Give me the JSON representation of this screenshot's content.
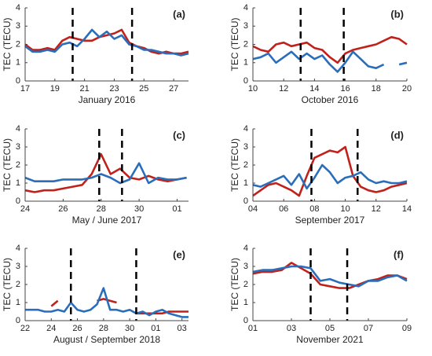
{
  "chart_data": [
    {
      "type": "line",
      "label": "(a)",
      "xlabel": "January 2016",
      "ylabel": "TEC (TECU)",
      "xlim": [
        17,
        28
      ],
      "xticks": [
        17,
        19,
        21,
        23,
        25,
        27
      ],
      "ylim": [
        0,
        4
      ],
      "yticks": [
        0,
        1,
        2,
        3,
        4
      ],
      "events": [
        20.2,
        24.2
      ],
      "x": [
        17,
        17.5,
        18,
        18.5,
        19,
        19.5,
        20,
        20.5,
        21,
        21.5,
        22,
        22.5,
        23,
        23.5,
        24,
        24.5,
        25,
        25.5,
        26,
        26.5,
        27,
        27.5,
        28
      ],
      "series": [
        {
          "color": "#c0211b",
          "values": [
            2.0,
            1.7,
            1.7,
            1.8,
            1.7,
            2.2,
            2.4,
            2.3,
            2.2,
            2.2,
            2.4,
            2.5,
            2.6,
            2.8,
            2.1,
            1.9,
            1.8,
            1.6,
            1.5,
            1.6,
            1.5,
            1.5,
            1.6
          ]
        },
        {
          "color": "#2a6ebb",
          "values": [
            1.9,
            1.6,
            1.6,
            1.7,
            1.6,
            2.0,
            2.1,
            1.9,
            2.3,
            2.8,
            2.4,
            2.7,
            2.3,
            2.5,
            2.0,
            1.9,
            1.7,
            1.7,
            1.6,
            1.5,
            1.5,
            1.4,
            1.5
          ]
        }
      ]
    },
    {
      "type": "line",
      "label": "(b)",
      "xlabel": "October 2016",
      "ylabel": "TEC (TECU)",
      "xlim": [
        10,
        20
      ],
      "xticks": [
        10,
        12,
        14,
        16,
        18,
        20
      ],
      "ylim": [
        0,
        4
      ],
      "yticks": [
        0,
        1,
        2,
        3,
        4
      ],
      "events": [
        13.1,
        15.9
      ],
      "x": [
        10,
        10.5,
        11,
        11.5,
        12,
        12.5,
        13,
        13.5,
        14,
        14.5,
        15,
        15.5,
        16,
        16.5,
        17,
        17.5,
        18,
        18.5,
        19,
        19.5,
        20
      ],
      "series": [
        {
          "color": "#c0211b",
          "values": [
            1.9,
            1.7,
            1.6,
            2.0,
            2.1,
            1.9,
            2.0,
            2.1,
            1.8,
            1.7,
            1.3,
            1.0,
            1.5,
            1.7,
            1.8,
            1.9,
            2.0,
            2.2,
            2.4,
            2.3,
            2.0
          ]
        },
        {
          "color": "#2a6ebb",
          "values": [
            1.2,
            1.3,
            1.5,
            1.0,
            1.3,
            1.6,
            1.2,
            1.5,
            1.2,
            1.4,
            0.9,
            0.5,
            1.0,
            1.6,
            1.2,
            0.8,
            0.7,
            0.9,
            null,
            0.9,
            1.0
          ]
        }
      ]
    },
    {
      "type": "line",
      "label": "(c)",
      "xlabel": "May / June 2017",
      "ylabel": "TEC (TECU)",
      "xlim": [
        24,
        32.6
      ],
      "xticks": [
        24,
        26,
        28,
        30,
        {
          "value": 32,
          "label": "01"
        }
      ],
      "ylim": [
        0,
        4
      ],
      "yticks": [
        0,
        1,
        2,
        3,
        4
      ],
      "events": [
        27.9,
        29.1
      ],
      "x": [
        24,
        24.5,
        25,
        25.5,
        26,
        26.5,
        27,
        27.5,
        28,
        28.5,
        29,
        29.5,
        30,
        30.5,
        31,
        31.5,
        32,
        32.5
      ],
      "series": [
        {
          "color": "#c0211b",
          "values": [
            0.6,
            0.5,
            0.6,
            0.6,
            0.7,
            0.8,
            0.9,
            1.5,
            2.6,
            1.5,
            1.8,
            1.3,
            1.2,
            1.4,
            1.2,
            1.1,
            1.2,
            1.3
          ]
        },
        {
          "color": "#2a6ebb",
          "values": [
            1.3,
            1.1,
            1.1,
            1.1,
            1.2,
            1.2,
            1.2,
            1.3,
            1.5,
            1.3,
            1.0,
            1.2,
            2.1,
            1.0,
            1.3,
            1.2,
            1.2,
            1.3
          ]
        }
      ]
    },
    {
      "type": "line",
      "label": "(d)",
      "xlabel": "September 2017",
      "ylabel": "TEC (TECU)",
      "xlim": [
        4,
        14
      ],
      "xticks": [
        {
          "value": 4,
          "label": "04"
        },
        {
          "value": 6,
          "label": "06"
        },
        {
          "value": 8,
          "label": "08"
        },
        10,
        12,
        14
      ],
      "ylim": [
        0,
        4
      ],
      "yticks": [
        0,
        1,
        2,
        3,
        4
      ],
      "events": [
        7.8,
        10.8
      ],
      "x": [
        4,
        4.5,
        5,
        5.5,
        6,
        6.5,
        7,
        7.5,
        8,
        8.5,
        9,
        9.5,
        10,
        10.5,
        11,
        11.5,
        12,
        12.5,
        13,
        13.5,
        14
      ],
      "series": [
        {
          "color": "#c0211b",
          "values": [
            0.3,
            0.6,
            0.9,
            1.0,
            0.8,
            0.6,
            0.3,
            1.4,
            2.4,
            2.6,
            2.8,
            2.7,
            3.0,
            1.4,
            0.8,
            0.6,
            0.5,
            0.6,
            0.8,
            0.9,
            1.0
          ]
        },
        {
          "color": "#2a6ebb",
          "values": [
            0.9,
            0.8,
            1.0,
            1.2,
            1.4,
            0.9,
            1.5,
            0.7,
            1.3,
            2.0,
            1.6,
            1.0,
            1.3,
            1.4,
            1.6,
            1.2,
            1.0,
            1.1,
            1.0,
            1.0,
            1.1
          ]
        }
      ]
    },
    {
      "type": "line",
      "label": "(e)",
      "xlabel": "August / September 2018",
      "ylabel": "TEC (TECU)",
      "xlim": [
        22,
        34.5
      ],
      "xticks": [
        22,
        24,
        26,
        28,
        30,
        {
          "value": 32,
          "label": "01"
        },
        {
          "value": 34,
          "label": "03"
        }
      ],
      "ylim": [
        0,
        4
      ],
      "yticks": [
        0,
        1,
        2,
        3,
        4
      ],
      "events": [
        25.5,
        30.5
      ],
      "x": [
        22,
        22.5,
        23,
        23.5,
        24,
        24.5,
        25,
        25.5,
        26,
        26.5,
        27,
        27.5,
        28,
        28.5,
        29,
        29.5,
        30,
        30.5,
        31,
        31.5,
        32,
        32.5,
        33,
        33.5,
        34,
        34.5
      ],
      "series": [
        {
          "color": "#c0211b",
          "values": [
            null,
            null,
            null,
            null,
            0.8,
            1.1,
            null,
            null,
            null,
            null,
            null,
            1.1,
            1.2,
            1.1,
            1.0,
            null,
            null,
            0.4,
            0.4,
            0.4,
            0.4,
            0.4,
            0.5,
            0.5,
            0.5,
            0.5
          ]
        },
        {
          "color": "#2a6ebb",
          "values": [
            0.6,
            0.6,
            0.6,
            0.5,
            0.5,
            0.6,
            0.5,
            1.0,
            0.6,
            0.5,
            0.6,
            0.9,
            1.8,
            0.6,
            0.6,
            0.5,
            0.6,
            0.4,
            0.5,
            0.3,
            0.5,
            0.6,
            0.4,
            0.3,
            0.2,
            0.2
          ]
        }
      ]
    },
    {
      "type": "line",
      "label": "(f)",
      "xlabel": "November 2021",
      "ylabel": "TEC (TECU)",
      "xlim": [
        1,
        9
      ],
      "xticks": [
        {
          "value": 1,
          "label": "01"
        },
        {
          "value": 3,
          "label": "03"
        },
        {
          "value": 5,
          "label": "05"
        },
        {
          "value": 7,
          "label": "07"
        },
        {
          "value": 9,
          "label": "09"
        }
      ],
      "ylim": [
        0,
        4
      ],
      "yticks": [
        0,
        1,
        2,
        3,
        4
      ],
      "events": [
        4.0,
        5.9
      ],
      "x": [
        1,
        1.5,
        2,
        2.5,
        3,
        3.5,
        4,
        4.5,
        5,
        5.5,
        6,
        6.5,
        7,
        7.5,
        8,
        8.5,
        9
      ],
      "series": [
        {
          "color": "#c0211b",
          "values": [
            2.6,
            2.7,
            2.7,
            2.8,
            3.2,
            2.9,
            2.6,
            2.0,
            1.9,
            1.8,
            1.8,
            2.0,
            2.2,
            2.3,
            2.5,
            2.5,
            2.3
          ]
        },
        {
          "color": "#2a6ebb",
          "values": [
            2.7,
            2.8,
            2.8,
            2.9,
            3.0,
            3.0,
            2.9,
            2.2,
            2.3,
            2.1,
            2.0,
            1.9,
            2.2,
            2.2,
            2.4,
            2.5,
            2.2
          ]
        }
      ]
    }
  ]
}
